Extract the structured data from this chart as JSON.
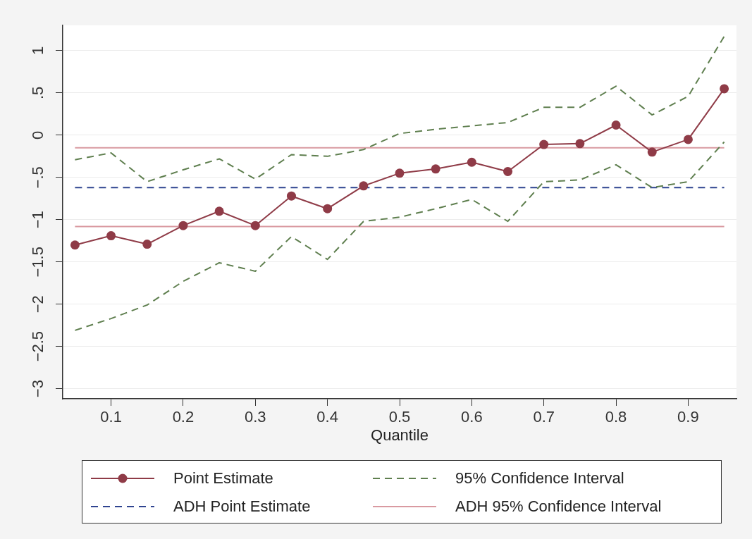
{
  "chart_data": {
    "type": "line",
    "xlabel": "Quantile",
    "x": [
      0.05,
      0.1,
      0.15,
      0.2,
      0.25,
      0.3,
      0.35,
      0.4,
      0.45,
      0.5,
      0.55,
      0.6,
      0.65,
      0.7,
      0.75,
      0.8,
      0.85,
      0.9,
      0.95
    ],
    "xlim": [
      0.033,
      0.967
    ],
    "xticks": [
      0.1,
      0.2,
      0.3,
      0.4,
      0.5,
      0.6,
      0.7,
      0.8,
      0.9
    ],
    "ylim": [
      -3.12,
      1.3
    ],
    "yticks": [
      {
        "value": -3,
        "label": "−3"
      },
      {
        "value": -2.5,
        "label": "−2.5"
      },
      {
        "value": -2,
        "label": "−2"
      },
      {
        "value": -1.5,
        "label": "−1.5"
      },
      {
        "value": -1,
        "label": "−1"
      },
      {
        "value": -0.5,
        "label": "−.5"
      },
      0,
      {
        "value": 0.5,
        "label": ".5"
      },
      1
    ],
    "grid": "y",
    "legend": "bottom",
    "series": [
      {
        "name": "Point Estimate",
        "color": "#8f3b47",
        "marker": "circle",
        "line_style": "solid",
        "values": [
          -1.3,
          -1.19,
          -1.29,
          -1.07,
          -0.9,
          -1.07,
          -0.72,
          -0.87,
          -0.6,
          -0.45,
          -0.4,
          -0.32,
          -0.43,
          -0.11,
          -0.1,
          0.12,
          -0.2,
          -0.05,
          0.55
        ]
      },
      {
        "name": "95% Confidence Interval",
        "color": "#5f7f4f",
        "marker": "none",
        "line_style": "dashed",
        "values": [
          -0.29,
          -0.21,
          -0.55,
          -0.41,
          -0.28,
          -0.52,
          -0.23,
          -0.25,
          -0.17,
          0.02,
          0.07,
          0.11,
          0.15,
          0.33,
          0.33,
          0.58,
          0.24,
          0.46,
          1.17
        ]
      },
      {
        "color": "#5f7f4f",
        "marker": "none",
        "line_style": "dashed",
        "values": [
          -2.31,
          -2.17,
          -2.01,
          -1.73,
          -1.51,
          -1.61,
          -1.2,
          -1.47,
          -1.02,
          -0.97,
          -0.87,
          -0.76,
          -1.02,
          -0.55,
          -0.53,
          -0.35,
          -0.62,
          -0.55,
          -0.08
        ]
      },
      {
        "name": "ADH Point Estimate",
        "color": "#2f4490",
        "marker": "none",
        "line_style": "dashed",
        "values": [
          -0.62,
          -0.62,
          -0.62,
          -0.62,
          -0.62,
          -0.62,
          -0.62,
          -0.62,
          -0.62,
          -0.62,
          -0.62,
          -0.62,
          -0.62,
          -0.62,
          -0.62,
          -0.62,
          -0.62,
          -0.62,
          -0.62
        ]
      },
      {
        "name": "ADH 95% Confidence Interval",
        "color": "#d99aa1",
        "marker": "none",
        "line_style": "solid",
        "values": [
          -0.15,
          -0.15,
          -0.15,
          -0.15,
          -0.15,
          -0.15,
          -0.15,
          -0.15,
          -0.15,
          -0.15,
          -0.15,
          -0.15,
          -0.15,
          -0.15,
          -0.15,
          -0.15,
          -0.15,
          -0.15,
          -0.15
        ]
      },
      {
        "color": "#d99aa1",
        "marker": "none",
        "line_style": "solid",
        "values": [
          -1.08,
          -1.08,
          -1.08,
          -1.08,
          -1.08,
          -1.08,
          -1.08,
          -1.08,
          -1.08,
          -1.08,
          -1.08,
          -1.08,
          -1.08,
          -1.08,
          -1.08,
          -1.08,
          -1.08,
          -1.08,
          -1.08
        ]
      }
    ]
  }
}
